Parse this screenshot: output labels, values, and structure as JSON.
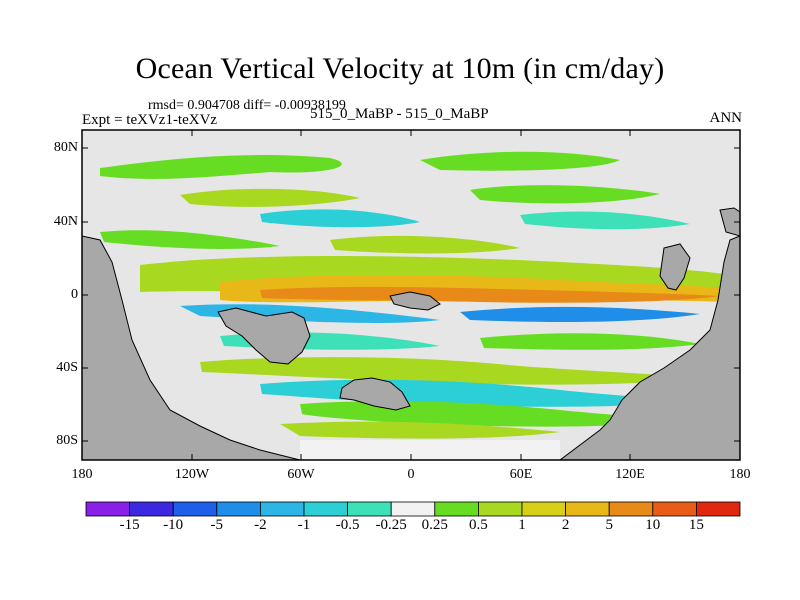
{
  "title": "Ocean Vertical Velocity at 10m (in cm/day)",
  "stats": "rmsd= 0.904708 diff= -0.00938199",
  "expt": "Expt = teXVz1-teXVz",
  "case": "515_0_MaBP - 515_0_MaBP",
  "season": "ANN",
  "lat_labels": [
    "80N",
    "40N",
    "0",
    "40S",
    "80S"
  ],
  "lon_labels": [
    "180",
    "120W",
    "60W",
    "0",
    "60E",
    "120E",
    "180"
  ],
  "colorbar": {
    "labels": [
      "-15",
      "-10",
      "-5",
      "-2",
      "-1",
      "-0.5",
      "-0.25",
      "0.25",
      "0.5",
      "1",
      "2",
      "5",
      "10",
      "15"
    ],
    "colors": [
      "#8a20e8",
      "#3c28e0",
      "#1f5ee8",
      "#1f8ee8",
      "#2cb6e6",
      "#2ccfd6",
      "#3ee0b8",
      "#f2f2f2",
      "#66dd22",
      "#a8d820",
      "#d8d018",
      "#e8b818",
      "#e88a18",
      "#e85c18",
      "#e02810"
    ]
  },
  "chart_data": {
    "type": "heatmap",
    "title": "Ocean Vertical Velocity at 10m (in cm/day)",
    "units": "cm/day",
    "x_range": [
      -180,
      180
    ],
    "y_range": [
      -90,
      90
    ],
    "land_color": "#a8a8a8",
    "ocean_background": "#e6e6e6",
    "features": [
      {
        "name": "equatorial-upwelling-band",
        "lat": 0,
        "value": 5
      },
      {
        "name": "subtropical-downwelling-band",
        "lat": -15,
        "value": -2
      },
      {
        "name": "southern-ocean-band",
        "lat": -50,
        "value": 1
      }
    ]
  }
}
